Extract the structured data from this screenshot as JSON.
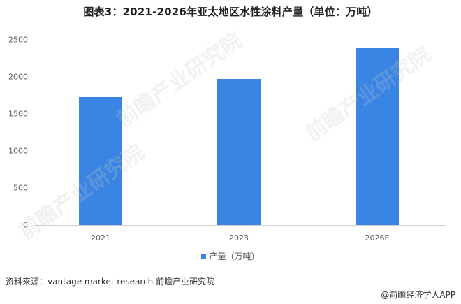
{
  "title": "图表3：2021-2026年亚太地区水性涂料产量（单位：万吨）",
  "source": "资料来源：vantage market research  前瞻产业研究院",
  "credit": "@前瞻经济学人APP",
  "watermark": "前瞻产业研究院",
  "colors": {
    "bar": "#3a84e3",
    "axis": "#d0d0d0"
  },
  "chart_data": {
    "type": "bar",
    "title": "图表3：2021-2026年亚太地区水性涂料产量（单位：万吨）",
    "xlabel": "",
    "ylabel": "",
    "categories": [
      "2021",
      "2023",
      "2026E"
    ],
    "series": [
      {
        "name": "产量（万吨）",
        "values": [
          1730,
          1970,
          2390
        ]
      }
    ],
    "yticks": [
      "0",
      "500",
      "1000",
      "1500",
      "2000",
      "2500"
    ],
    "ylim": [
      0,
      2500
    ],
    "grid": false,
    "legend_position": "bottom"
  }
}
